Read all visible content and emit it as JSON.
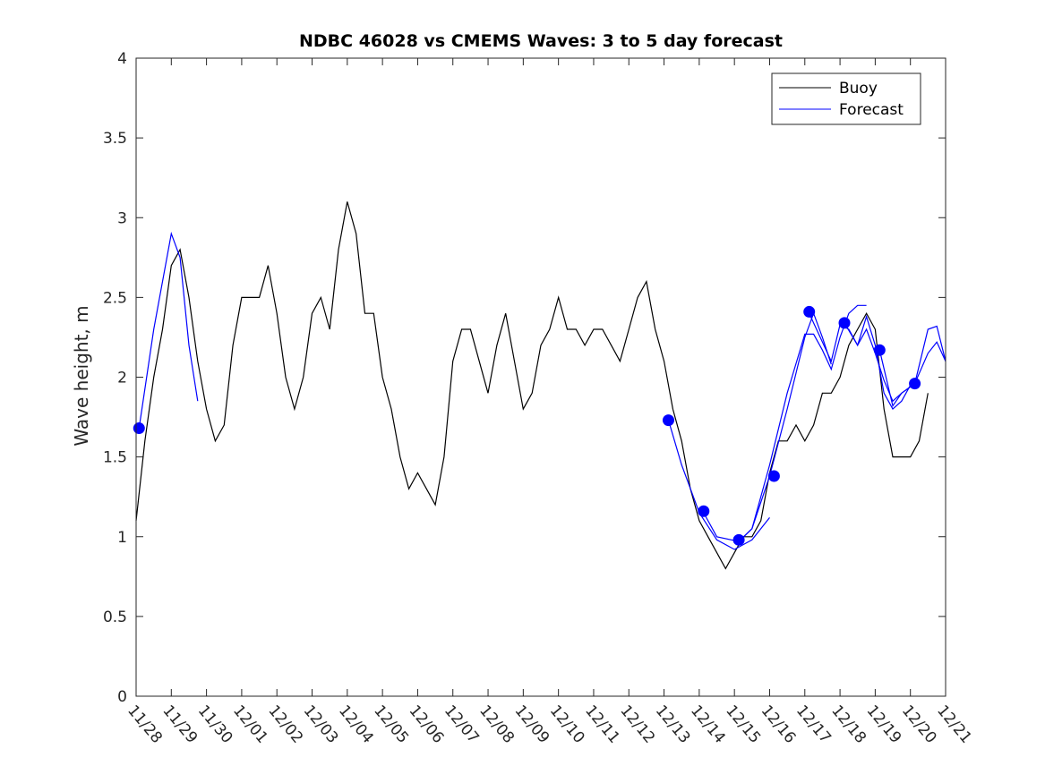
{
  "chart_data": {
    "type": "line",
    "title": "NDBC 46028 vs CMEMS Waves: 3 to 5 day forecast",
    "xlabel": "",
    "ylabel": "Wave height, m",
    "xlim": [
      "11/28",
      "12/21"
    ],
    "ylim": [
      0,
      4
    ],
    "grid": false,
    "legend_position": "top-right",
    "x_tick_labels": [
      "11/28",
      "11/29",
      "11/30",
      "12/01",
      "12/02",
      "12/03",
      "12/04",
      "12/05",
      "12/06",
      "12/07",
      "12/08",
      "12/09",
      "12/10",
      "12/11",
      "12/12",
      "12/13",
      "12/14",
      "12/15",
      "12/16",
      "12/17",
      "12/18",
      "12/19",
      "12/20",
      "12/21"
    ],
    "y_ticks": [
      0,
      0.5,
      1,
      1.5,
      2,
      2.5,
      3,
      3.5,
      4
    ],
    "y_tick_labels": [
      "0",
      "0.5",
      "1",
      "1.5",
      "2",
      "2.5",
      "3",
      "3.5",
      "4"
    ],
    "series": [
      {
        "name": "Buoy",
        "color": "#000000",
        "style": "line",
        "x": [
          "11/28 00:00",
          "11/28 06:00",
          "11/28 12:00",
          "11/28 18:00",
          "11/29 00:00",
          "11/29 06:00",
          "11/29 12:00",
          "11/29 18:00",
          "11/30 00:00",
          "11/30 06:00",
          "11/30 12:00",
          "11/30 18:00",
          "12/01 00:00",
          "12/01 06:00",
          "12/01 12:00",
          "12/01 18:00",
          "12/02 00:00",
          "12/02 06:00",
          "12/02 12:00",
          "12/02 18:00",
          "12/03 00:00",
          "12/03 06:00",
          "12/03 12:00",
          "12/03 18:00",
          "12/04 00:00",
          "12/04 06:00",
          "12/04 12:00",
          "12/04 18:00",
          "12/05 00:00",
          "12/05 06:00",
          "12/05 12:00",
          "12/05 18:00",
          "12/06 00:00",
          "12/06 06:00",
          "12/06 12:00",
          "12/06 18:00",
          "12/07 00:00",
          "12/07 06:00",
          "12/07 12:00",
          "12/07 18:00",
          "12/08 00:00",
          "12/08 06:00",
          "12/08 12:00",
          "12/08 18:00",
          "12/09 00:00",
          "12/09 06:00",
          "12/09 12:00",
          "12/09 18:00",
          "12/10 00:00",
          "12/10 06:00",
          "12/10 12:00",
          "12/10 18:00",
          "12/11 00:00",
          "12/11 06:00",
          "12/11 12:00",
          "12/11 18:00",
          "12/12 00:00",
          "12/12 06:00",
          "12/12 12:00",
          "12/12 18:00",
          "12/13 00:00",
          "12/13 06:00",
          "12/13 12:00",
          "12/13 18:00",
          "12/14 00:00",
          "12/14 06:00",
          "12/14 12:00",
          "12/14 18:00",
          "12/15 00:00",
          "12/15 06:00",
          "12/15 12:00",
          "12/15 18:00",
          "12/16 00:00",
          "12/16 06:00",
          "12/16 12:00",
          "12/16 18:00",
          "12/17 00:00",
          "12/17 06:00",
          "12/17 12:00",
          "12/17 18:00",
          "12/18 00:00",
          "12/18 06:00",
          "12/18 12:00",
          "12/18 18:00",
          "12/19 00:00",
          "12/19 06:00",
          "12/19 12:00",
          "12/19 18:00",
          "12/20 00:00",
          "12/20 06:00",
          "12/20 12:00"
        ],
        "values": [
          1.1,
          1.6,
          2.0,
          2.3,
          2.7,
          2.8,
          2.5,
          2.1,
          1.8,
          1.6,
          1.7,
          2.2,
          2.5,
          2.5,
          2.5,
          2.7,
          2.4,
          2.0,
          1.8,
          2.0,
          2.4,
          2.5,
          2.3,
          2.8,
          3.1,
          2.9,
          2.4,
          2.4,
          2.0,
          1.8,
          1.5,
          1.3,
          1.4,
          1.3,
          1.2,
          1.5,
          2.1,
          2.3,
          2.3,
          2.1,
          1.9,
          2.2,
          2.4,
          2.1,
          1.8,
          1.9,
          2.2,
          2.3,
          2.5,
          2.3,
          2.3,
          2.2,
          2.3,
          2.3,
          2.2,
          2.1,
          2.3,
          2.5,
          2.6,
          2.3,
          2.1,
          1.8,
          1.6,
          1.3,
          1.1,
          1.0,
          0.9,
          0.8,
          0.9,
          1.0,
          1.0,
          1.1,
          1.4,
          1.6,
          1.6,
          1.7,
          1.6,
          1.7,
          1.9,
          1.9,
          2.0,
          2.2,
          2.3,
          2.4,
          2.3,
          1.8,
          1.5,
          1.5,
          1.5,
          1.6,
          1.9
        ]
      },
      {
        "name": "Forecast",
        "color": "#0000ff",
        "style": "line",
        "segments": [
          {
            "x": [
              "11/28 02:00",
              "11/28 12:00",
              "11/29 00:00",
              "11/29 06:00",
              "11/29 12:00",
              "11/29 18:00"
            ],
            "values": [
              1.68,
              2.3,
              2.9,
              2.75,
              2.2,
              1.85
            ]
          },
          {
            "x": [
              "12/13 03:00",
              "12/13 12:00",
              "12/14 00:00",
              "12/14 12:00",
              "12/15 00:00",
              "12/15 12:00",
              "12/16 00:00"
            ],
            "values": [
              1.73,
              1.45,
              1.15,
              0.98,
              0.92,
              0.98,
              1.12
            ]
          },
          {
            "x": [
              "12/14 03:00",
              "12/14 12:00",
              "12/15 03:00",
              "12/15 12:00",
              "12/16 00:00",
              "12/16 12:00",
              "12/17 00:00",
              "12/17 06:00",
              "12/17 12:00",
              "12/17 18:00"
            ],
            "values": [
              1.15,
              1.0,
              0.97,
              1.05,
              1.38,
              1.8,
              2.25,
              2.4,
              2.25,
              2.08
            ]
          },
          {
            "x": [
              "12/15 03:00",
              "12/15 12:00",
              "12/16 00:00",
              "12/16 12:00",
              "12/17 00:00",
              "12/17 06:00",
              "12/17 12:00",
              "12/17 18:00",
              "12/18 00:00",
              "12/18 06:00",
              "12/18 12:00",
              "12/18 18:00"
            ],
            "values": [
              0.97,
              1.05,
              1.45,
              1.9,
              2.27,
              2.27,
              2.17,
              2.05,
              2.25,
              2.4,
              2.45,
              2.45
            ]
          },
          {
            "x": [
              "12/17 03:00",
              "12/17 18:00",
              "12/18 00:00",
              "12/18 06:00",
              "12/18 12:00",
              "12/18 18:00",
              "12/19 00:00",
              "12/19 06:00",
              "12/19 12:00",
              "12/19 18:00",
              "12/20 00:00"
            ],
            "values": [
              2.4,
              2.1,
              2.33,
              2.3,
              2.2,
              2.38,
              2.2,
              1.9,
              1.8,
              1.85,
              1.95
            ]
          },
          {
            "x": [
              "12/18 03:00",
              "12/18 12:00",
              "12/18 18:00",
              "12/19 00:00",
              "12/19 06:00",
              "12/19 12:00",
              "12/19 18:00",
              "12/20 03:00",
              "12/20 12:00",
              "12/20 18:00",
              "12/21 00:00"
            ],
            "values": [
              2.34,
              2.2,
              2.3,
              2.15,
              1.98,
              1.85,
              1.9,
              1.96,
              2.3,
              2.32,
              2.1
            ]
          },
          {
            "x": [
              "12/19 03:00",
              "12/19 12:00",
              "12/19 18:00",
              "12/20 03:00",
              "12/20 12:00",
              "12/20 18:00",
              "12/21 00:00"
            ],
            "values": [
              2.17,
              1.82,
              1.9,
              1.96,
              2.15,
              2.22,
              2.1
            ]
          }
        ],
        "markers": {
          "x": [
            "11/28 02:00",
            "12/13 03:00",
            "12/14 03:00",
            "12/15 03:00",
            "12/16 03:00",
            "12/17 03:00",
            "12/18 03:00",
            "12/19 03:00",
            "12/20 03:00"
          ],
          "values": [
            1.68,
            1.73,
            1.16,
            0.98,
            1.38,
            2.41,
            2.34,
            2.17,
            1.96
          ]
        }
      }
    ]
  }
}
